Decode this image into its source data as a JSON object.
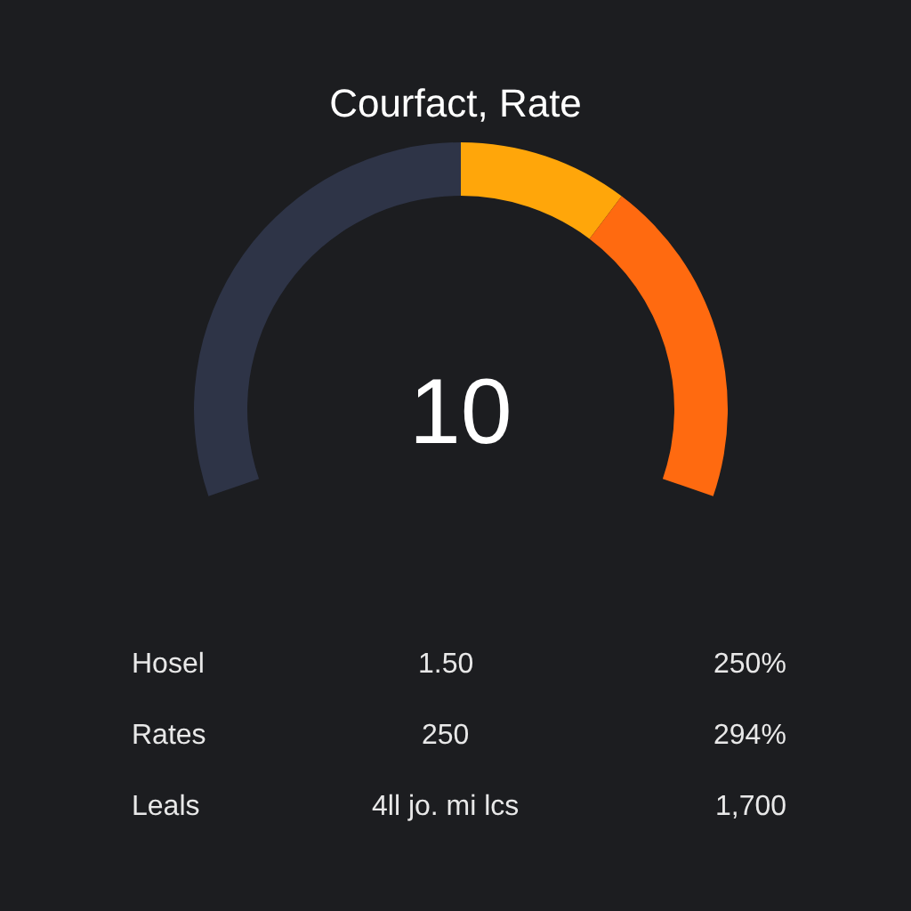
{
  "chart_data": {
    "type": "donut",
    "title": "Courfact, Rate",
    "categories": [
      null,
      null,
      null
    ],
    "values": [
      50,
      17,
      33
    ],
    "colors": [
      "#2e3447",
      "#ffa60a",
      "#ff6a10"
    ],
    "legend": false,
    "annotations": [
      "10",
      "Hosel",
      "1.50",
      "250%",
      "Rates",
      "250",
      "294%",
      "Leals",
      "4ll jo. mi lcs",
      "1,700"
    ]
  }
}
